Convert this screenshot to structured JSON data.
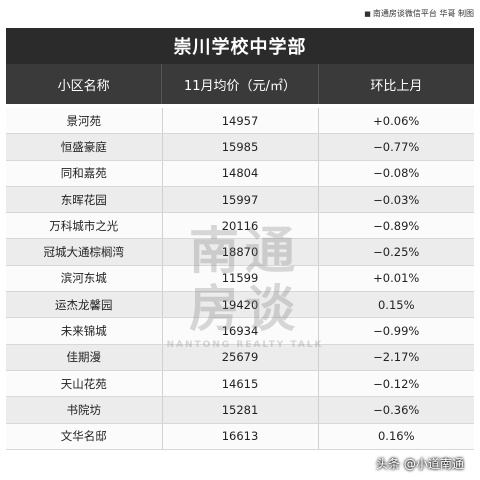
{
  "credit": {
    "bullet": "■",
    "text": "南通房谈微信平台 华哥 制图"
  },
  "title": "崇川学校中学部",
  "headers": [
    "小区名称",
    "11月均价（元/㎡）",
    "环比上月"
  ],
  "rows": [
    [
      "景河苑",
      "14957",
      "+0.06%"
    ],
    [
      "恒盛豪庭",
      "15985",
      "−0.77%"
    ],
    [
      "同和嘉苑",
      "14804",
      "−0.08%"
    ],
    [
      "东晖花园",
      "15997",
      "−0.03%"
    ],
    [
      "万科城市之光",
      "20116",
      "−0.89%"
    ],
    [
      "冠城大通棕榈湾",
      "18870",
      "−0.25%"
    ],
    [
      "滨河东城",
      "11599",
      "+0.01%"
    ],
    [
      "运杰龙馨园",
      "19420",
      "0.15%"
    ],
    [
      "未来锦城",
      "16934",
      "−0.99%"
    ],
    [
      "佳期漫",
      "25679",
      "−2.17%"
    ],
    [
      "天山花苑",
      "14615",
      "−0.12%"
    ],
    [
      "书院坊",
      "15281",
      "−0.36%"
    ],
    [
      "文华名邸",
      "16613",
      "0.16%"
    ]
  ],
  "watermark": {
    "line1": "南通",
    "line2": "房谈",
    "en": "NANTONG REALTY TALK"
  },
  "badge": "头条 @小道南通"
}
